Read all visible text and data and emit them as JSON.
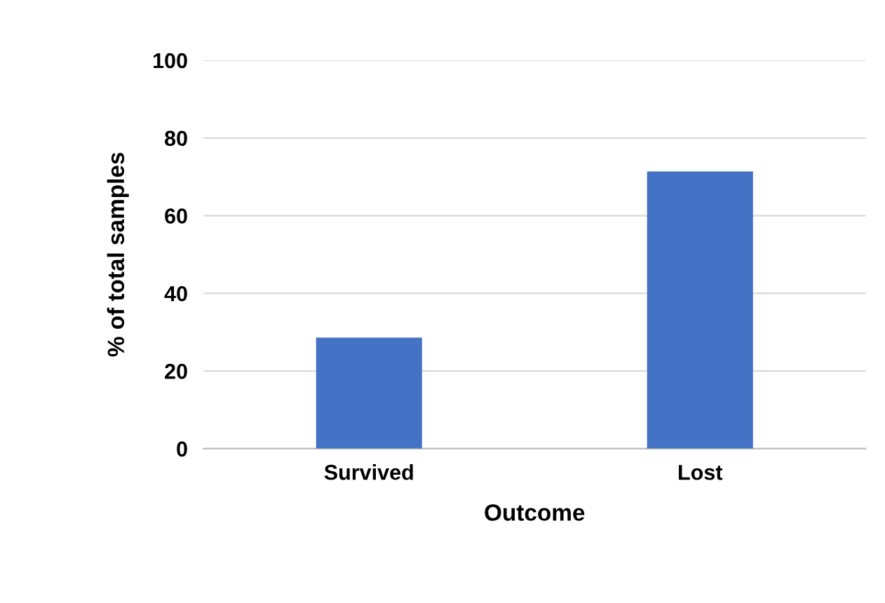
{
  "chart_data": {
    "type": "bar",
    "xlabel": "Outcome",
    "ylabel": "% of total samples",
    "categories": [
      "Survived",
      "Lost"
    ],
    "values": [
      28.6,
      71.4
    ],
    "color": "#4472c4",
    "ylim": [
      0,
      100
    ],
    "yticks": [
      0,
      20,
      40,
      60,
      80,
      100
    ],
    "grid": "y"
  }
}
